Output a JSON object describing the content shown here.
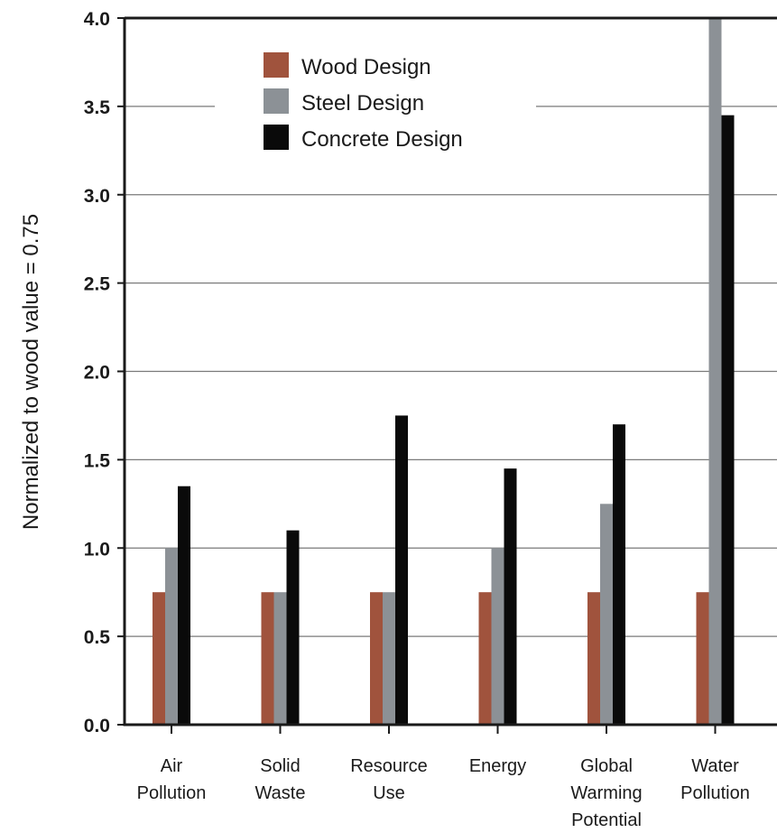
{
  "chart_data": {
    "type": "bar",
    "title": "",
    "xlabel": "",
    "ylabel": "Normalized to wood value = 0.75",
    "ylim": [
      0,
      4.0
    ],
    "yticks": [
      "0.0",
      "0.5",
      "1.0",
      "1.5",
      "2.0",
      "2.5",
      "3.0",
      "3.5",
      "4.0"
    ],
    "grid": true,
    "legend_position": "top-center",
    "categories": [
      [
        "Air",
        "Pollution"
      ],
      [
        "Solid",
        "Waste"
      ],
      [
        "Resource",
        "Use"
      ],
      [
        "Energy"
      ],
      [
        "Global",
        "Warming",
        "Potential"
      ],
      [
        "Water",
        "Pollution"
      ]
    ],
    "series": [
      {
        "name": "Wood Design",
        "color": "#a0533d",
        "values": [
          0.75,
          0.75,
          0.75,
          0.75,
          0.75,
          0.75
        ]
      },
      {
        "name": "Steel Design",
        "color": "#8c9196",
        "values": [
          1.0,
          0.75,
          0.75,
          1.0,
          1.25,
          4.0
        ]
      },
      {
        "name": "Concrete Design",
        "color": "#0a0a0a",
        "values": [
          1.35,
          1.1,
          1.75,
          1.45,
          1.7,
          3.45
        ]
      }
    ]
  }
}
